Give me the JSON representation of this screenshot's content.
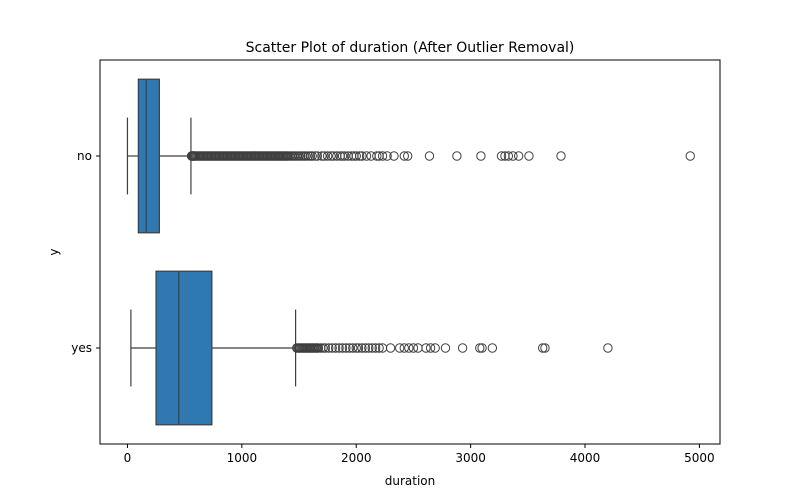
{
  "chart_data": {
    "type": "boxplot",
    "orientation": "horizontal",
    "title": "Scatter Plot of duration (After Outlier Removal)",
    "xlabel": "duration",
    "ylabel": "y",
    "xlim": [
      -240,
      5180
    ],
    "xticks": [
      0,
      1000,
      2000,
      3000,
      4000,
      5000
    ],
    "grid": false,
    "legend": "none",
    "box_color": "#2f78b2",
    "categories": [
      "no",
      "yes"
    ],
    "boxes": [
      {
        "category": "no",
        "whisker_low": 0,
        "q1": 95,
        "median": 164,
        "q3": 279,
        "whisker_high": 555,
        "outliers": [
          560,
          565,
          570,
          575,
          580,
          585,
          590,
          600,
          610,
          620,
          630,
          640,
          650,
          660,
          670,
          680,
          690,
          700,
          710,
          720,
          730,
          740,
          750,
          760,
          770,
          780,
          790,
          800,
          810,
          820,
          830,
          840,
          850,
          860,
          870,
          880,
          890,
          900,
          910,
          920,
          930,
          940,
          950,
          960,
          970,
          980,
          990,
          1000,
          1010,
          1020,
          1030,
          1040,
          1050,
          1060,
          1070,
          1080,
          1090,
          1100,
          1110,
          1120,
          1130,
          1140,
          1150,
          1160,
          1170,
          1180,
          1190,
          1200,
          1210,
          1220,
          1230,
          1240,
          1250,
          1260,
          1270,
          1280,
          1290,
          1300,
          1310,
          1320,
          1330,
          1340,
          1350,
          1360,
          1370,
          1380,
          1390,
          1400,
          1410,
          1425,
          1440,
          1455,
          1470,
          1485,
          1500,
          1515,
          1530,
          1545,
          1560,
          1580,
          1600,
          1615,
          1640,
          1660,
          1700,
          1720,
          1750,
          1780,
          1800,
          1830,
          1860,
          1880,
          1900,
          1930,
          1960,
          1980,
          2000,
          2030,
          2050,
          2090,
          2130,
          2180,
          2200,
          2230,
          2270,
          2330,
          2420,
          2450,
          2640,
          2880,
          3090,
          3270,
          3300,
          3330,
          3370,
          3420,
          3510,
          3790,
          4920
        ]
      },
      {
        "category": "yes",
        "whisker_low": 30,
        "q1": 250,
        "median": 448,
        "q3": 738,
        "whisker_high": 1470,
        "outliers": [
          1480,
          1490,
          1500,
          1510,
          1520,
          1530,
          1540,
          1550,
          1560,
          1570,
          1580,
          1590,
          1600,
          1610,
          1620,
          1630,
          1640,
          1650,
          1660,
          1670,
          1690,
          1710,
          1730,
          1760,
          1790,
          1820,
          1850,
          1880,
          1910,
          1940,
          1970,
          2000,
          2020,
          2050,
          2080,
          2110,
          2140,
          2170,
          2200,
          2230,
          2300,
          2380,
          2420,
          2460,
          2500,
          2540,
          2610,
          2650,
          2690,
          2780,
          2930,
          3080,
          3100,
          3190,
          3630,
          3650,
          4200
        ]
      }
    ]
  }
}
